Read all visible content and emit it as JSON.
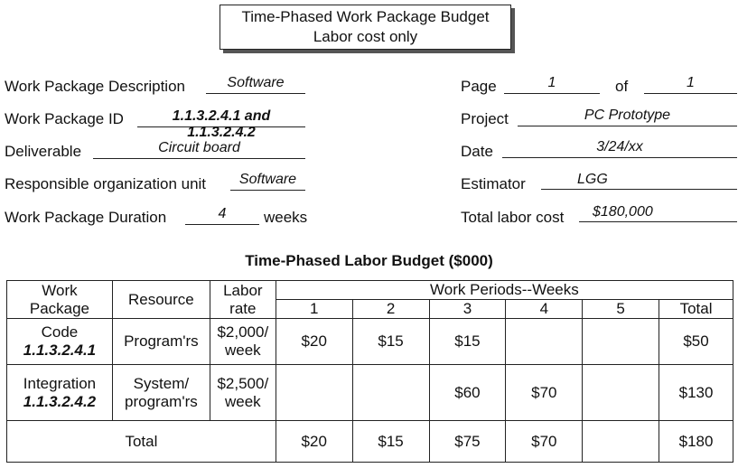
{
  "title": {
    "line1": "Time-Phased Work Package Budget",
    "line2": "Labor cost only"
  },
  "form": {
    "description_label": "Work Package Description",
    "description_value": "Software",
    "id_label": "Work Package ID",
    "id_value": "1.1.3.2.4.1 and 1.1.3.2.4.2",
    "deliverable_label": "Deliverable",
    "deliverable_value": "Circuit board",
    "org_label": "Responsible organization unit",
    "org_value": "Software",
    "duration_label": "Work Package Duration",
    "duration_value": "4",
    "duration_unit": "weeks",
    "page_label": "Page",
    "page_value": "1",
    "of_label": "of",
    "of_value": "1",
    "project_label": "Project",
    "project_value": "PC Prototype",
    "date_label": "Date",
    "date_value": "3/24/xx",
    "estimator_label": "Estimator",
    "estimator_value": "LGG",
    "total_cost_label": "Total labor cost",
    "total_cost_value": "$180,000"
  },
  "table": {
    "title": "Time-Phased Labor Budget ($000)",
    "headers": {
      "work_package_1": "Work",
      "work_package_2": "Package",
      "resource": "Resource",
      "labor_rate_1": "Labor",
      "labor_rate_2": "rate",
      "work_periods": "Work Periods--Weeks",
      "weeks": [
        "1",
        "2",
        "3",
        "4",
        "5"
      ],
      "total": "Total"
    },
    "rows": [
      {
        "name": "Code",
        "id": "1.1.3.2.4.1",
        "resource_1": "Program'rs",
        "resource_2": "",
        "rate_1": "$2,000/",
        "rate_2": "week",
        "weeks": [
          "$20",
          "$15",
          "$15",
          "",
          ""
        ],
        "total": "$50"
      },
      {
        "name": "Integration",
        "id": "1.1.3.2.4.2",
        "resource_1": "System/",
        "resource_2": "program'rs",
        "rate_1": "$2,500/",
        "rate_2": "week",
        "weeks": [
          "",
          "",
          "$60",
          "$70",
          ""
        ],
        "total": "$130"
      }
    ],
    "total_row": {
      "label": "Total",
      "weeks": [
        "$20",
        "$15",
        "$75",
        "$70",
        ""
      ],
      "total": "$180"
    }
  }
}
